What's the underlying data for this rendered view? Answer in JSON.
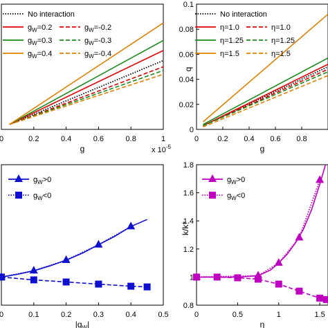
{
  "chart_data": [
    {
      "type": "line",
      "xlabel": "g",
      "ylabel": "",
      "x_multiplier_label": "x 10",
      "x_multiplier_exp": "-5",
      "xlim": [
        0,
        1
      ],
      "ylim": [
        0,
        0.1
      ],
      "x_ticks": [
        "0",
        "0.2",
        "0.4",
        "0.6",
        "0.8",
        "1"
      ],
      "legend_position": "top-left",
      "legend": [
        {
          "prefix": "No interaction",
          "sub": "",
          "value": ""
        },
        {
          "prefix": "g",
          "sub": "W",
          "value": "=0.2"
        },
        {
          "prefix": "g",
          "sub": "W",
          "value": "=-0.2"
        },
        {
          "prefix": "g",
          "sub": "W",
          "value": "=0.3"
        },
        {
          "prefix": "g",
          "sub": "W",
          "value": "=-0.3"
        },
        {
          "prefix": "g",
          "sub": "W",
          "value": "=0.4"
        },
        {
          "prefix": "g",
          "sub": "W",
          "value": "=-0.4"
        }
      ],
      "series": [
        {
          "color": "#000000",
          "dash": "dotted",
          "x": [
            0.05,
            1.0
          ],
          "y": [
            0.004,
            0.055
          ]
        },
        {
          "color": "#e00000",
          "dash": "solid",
          "x": [
            0.05,
            1.0
          ],
          "y": [
            0.004,
            0.063
          ]
        },
        {
          "color": "#e00000",
          "dash": "dashed",
          "x": [
            0.05,
            1.0
          ],
          "y": [
            0.004,
            0.05
          ]
        },
        {
          "color": "#1a8a1a",
          "dash": "solid",
          "x": [
            0.05,
            1.0
          ],
          "y": [
            0.004,
            0.071
          ]
        },
        {
          "color": "#1a8a1a",
          "dash": "dashed",
          "x": [
            0.05,
            1.0
          ],
          "y": [
            0.004,
            0.047
          ]
        },
        {
          "color": "#e08000",
          "dash": "solid",
          "x": [
            0.05,
            1.0
          ],
          "y": [
            0.004,
            0.085
          ]
        },
        {
          "color": "#e08000",
          "dash": "dashed",
          "x": [
            0.05,
            1.0
          ],
          "y": [
            0.004,
            0.044
          ]
        }
      ]
    },
    {
      "type": "line",
      "xlabel": "g",
      "ylabel": "q",
      "xlim": [
        0,
        1
      ],
      "ylim": [
        0,
        0.1
      ],
      "x_ticks": [
        "0",
        "0.2",
        "0.4",
        "0.6",
        "0.8"
      ],
      "y_ticks": [
        "0",
        "0.02",
        "0.04",
        "0.06",
        "0.08",
        "0.1"
      ],
      "legend_position": "top-left",
      "legend": [
        {
          "prefix": "No interaction",
          "sub": "",
          "value": ""
        },
        {
          "prefix": "η=1.0",
          "sub": "",
          "value": ""
        },
        {
          "prefix": "η=1.0",
          "sub": "",
          "value": ""
        },
        {
          "prefix": "η=1.25",
          "sub": "",
          "value": ""
        },
        {
          "prefix": "η=1.25",
          "sub": "",
          "value": ""
        },
        {
          "prefix": "η=1.5",
          "sub": "",
          "value": ""
        },
        {
          "prefix": "η=1.5",
          "sub": "",
          "value": ""
        }
      ],
      "series": [
        {
          "color": "#000000",
          "dash": "dotted",
          "x": [
            0.05,
            1.0
          ],
          "y": [
            0.003,
            0.05
          ]
        },
        {
          "color": "#e00000",
          "dash": "solid",
          "x": [
            0.05,
            1.0
          ],
          "y": [
            0.003,
            0.052
          ]
        },
        {
          "color": "#e00000",
          "dash": "dashed",
          "x": [
            0.05,
            1.0
          ],
          "y": [
            0.003,
            0.048
          ]
        },
        {
          "color": "#1a8a1a",
          "dash": "solid",
          "x": [
            0.05,
            1.0
          ],
          "y": [
            0.004,
            0.057
          ]
        },
        {
          "color": "#1a8a1a",
          "dash": "dashed",
          "x": [
            0.05,
            1.0
          ],
          "y": [
            0.003,
            0.046
          ]
        },
        {
          "color": "#e08000",
          "dash": "solid",
          "x": [
            0.05,
            1.0
          ],
          "y": [
            0.006,
            0.092
          ]
        },
        {
          "color": "#e08000",
          "dash": "dashed",
          "x": [
            0.05,
            1.0
          ],
          "y": [
            0.002,
            0.043
          ]
        }
      ]
    },
    {
      "type": "line",
      "xlabel": "|g",
      "xlabel_sub": "W",
      "xlabel_end": "|",
      "ylabel": "",
      "xlim": [
        0,
        0.5
      ],
      "ylim": [
        0.8,
        1.8
      ],
      "x_ticks": [
        "0",
        "0.1",
        "0.2",
        "0.3",
        "0.4",
        "0.5"
      ],
      "legend_position": "top-left",
      "legend": [
        {
          "prefix": "g",
          "sub": "W",
          "value": ">0"
        },
        {
          "prefix": "g",
          "sub": "W",
          "value": "<0"
        }
      ],
      "series": [
        {
          "color": "#1010d0",
          "dash": "solid",
          "marker": "",
          "x": [
            0,
            0.05,
            0.1,
            0.15,
            0.2,
            0.25,
            0.3,
            0.35,
            0.4,
            0.45
          ],
          "y": [
            1.0,
            1.02,
            1.045,
            1.08,
            1.12,
            1.17,
            1.23,
            1.29,
            1.36,
            1.41
          ]
        },
        {
          "color": "#1010d0",
          "dash": "dotted",
          "marker": "triangle",
          "x": [
            0,
            0.1,
            0.2,
            0.3,
            0.4
          ],
          "y": [
            1.0,
            1.045,
            1.12,
            1.23,
            1.36
          ]
        },
        {
          "color": "#1010d0",
          "dash": "dashed",
          "marker": "square",
          "x": [
            0,
            0.1,
            0.2,
            0.3,
            0.4,
            0.45
          ],
          "y": [
            1.0,
            0.98,
            0.965,
            0.95,
            0.935,
            0.93
          ]
        }
      ]
    },
    {
      "type": "line",
      "xlabel": "η",
      "ylabel": "k/k*",
      "xlim": [
        0,
        1.6
      ],
      "ylim": [
        0.8,
        1.8
      ],
      "x_ticks": [
        "0",
        "0.5",
        "1",
        "1.5"
      ],
      "y_ticks": [
        "0.8",
        "1",
        "1.2",
        "1.4",
        "1.6",
        "1.8"
      ],
      "legend_position": "top-left",
      "legend": [
        {
          "prefix": "g",
          "sub": "W",
          "value": ">0"
        },
        {
          "prefix": "g",
          "sub": "W",
          "value": "<0"
        }
      ],
      "series": [
        {
          "color": "#c000c0",
          "dash": "solid",
          "marker": "",
          "x": [
            0,
            0.25,
            0.5,
            0.75,
            0.9,
            1.0,
            1.1,
            1.2,
            1.3,
            1.4,
            1.5,
            1.58
          ],
          "y": [
            1.0,
            1.0,
            1.0,
            1.01,
            1.05,
            1.1,
            1.16,
            1.24,
            1.34,
            1.48,
            1.66,
            1.82
          ]
        },
        {
          "color": "#c000c0",
          "dash": "dotted",
          "marker": "triangle",
          "x": [
            0,
            0.75,
            1.0,
            1.25,
            1.5
          ],
          "y": [
            1.0,
            1.01,
            1.1,
            1.28,
            1.69
          ]
        },
        {
          "color": "#c000c0",
          "dash": "dashed",
          "marker": "square",
          "x": [
            0,
            0.25,
            0.5,
            0.75,
            1.0,
            1.25,
            1.5,
            1.58
          ],
          "y": [
            1.0,
            1.0,
            0.995,
            0.985,
            0.95,
            0.9,
            0.85,
            0.84
          ]
        }
      ]
    }
  ]
}
